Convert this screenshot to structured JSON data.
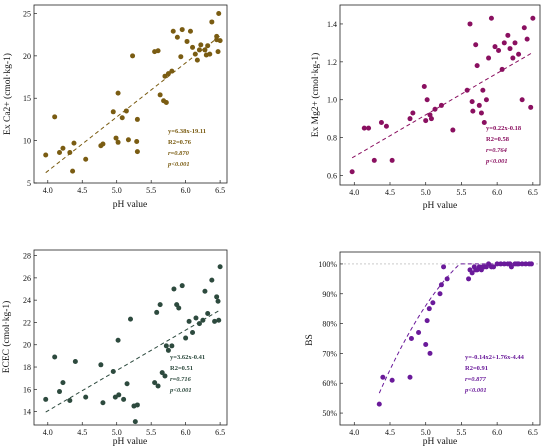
{
  "chart_data": [
    {
      "id": "ca",
      "type": "scatter",
      "xlabel": "pH value",
      "ylabel": "Ex Ca2+ (cmol·kg-1)",
      "xlim": [
        3.8,
        6.6
      ],
      "ylim": [
        5,
        26
      ],
      "xticks": [
        4.0,
        4.5,
        5.0,
        5.5,
        6.0,
        6.5
      ],
      "yticks": [
        5,
        10,
        15,
        20,
        25
      ],
      "xtick_labels": [
        "4.0",
        "4.5",
        "5.0",
        "5.5",
        "6.0",
        "6.5"
      ],
      "ytick_labels": [
        "5",
        "10",
        "15",
        "20",
        "25"
      ],
      "color": "#7a5c12",
      "fit": {
        "kind": "linear",
        "a": 6.38,
        "b": -19.11
      },
      "equation": [
        "y=6.38x-19.11",
        "R2=0.76",
        "r=0.870",
        "p<0.001"
      ],
      "points": [
        [
          3.97,
          8.3
        ],
        [
          4.1,
          12.8
        ],
        [
          4.17,
          8.6
        ],
        [
          4.22,
          9.1
        ],
        [
          4.32,
          8.6
        ],
        [
          4.36,
          6.4
        ],
        [
          4.38,
          9.7
        ],
        [
          4.55,
          7.8
        ],
        [
          4.77,
          9.4
        ],
        [
          4.8,
          9.6
        ],
        [
          4.95,
          13.4
        ],
        [
          4.99,
          10.3
        ],
        [
          5.02,
          15.6
        ],
        [
          5.02,
          9.8
        ],
        [
          5.08,
          12.7
        ],
        [
          5.14,
          13.5
        ],
        [
          5.17,
          10.1
        ],
        [
          5.23,
          20.0
        ],
        [
          5.29,
          9.9
        ],
        [
          5.3,
          8.7
        ],
        [
          5.3,
          12.5
        ],
        [
          5.55,
          20.5
        ],
        [
          5.6,
          20.6
        ],
        [
          5.63,
          15.4
        ],
        [
          5.68,
          14.7
        ],
        [
          5.7,
          17.6
        ],
        [
          5.72,
          14.5
        ],
        [
          5.75,
          17.9
        ],
        [
          5.8,
          18.2
        ],
        [
          5.82,
          22.9
        ],
        [
          5.88,
          22.2
        ],
        [
          5.93,
          19.9
        ],
        [
          5.95,
          23.1
        ],
        [
          6.02,
          21.7
        ],
        [
          6.07,
          22.9
        ],
        [
          6.14,
          20.2
        ],
        [
          6.17,
          19.5
        ],
        [
          6.2,
          20.7
        ],
        [
          6.22,
          21.3
        ],
        [
          6.28,
          20.7
        ],
        [
          6.32,
          21.2
        ],
        [
          6.35,
          20.2
        ],
        [
          6.38,
          24.0
        ],
        [
          6.45,
          22.3
        ],
        [
          6.47,
          20.5
        ],
        [
          6.48,
          25.0
        ],
        [
          6.5,
          21.8
        ],
        [
          6.45,
          21.9
        ],
        [
          6.1,
          21.0
        ],
        [
          6.3,
          20.1
        ]
      ]
    },
    {
      "id": "mg",
      "type": "scatter",
      "xlabel": "pH value",
      "ylabel": "Ex Mg2+ (cmol·kg-1)",
      "xlim": [
        3.8,
        6.6
      ],
      "ylim": [
        0.55,
        1.5
      ],
      "xticks": [
        4.0,
        4.5,
        5.0,
        5.5,
        6.0,
        6.5
      ],
      "yticks": [
        0.6,
        0.8,
        1.0,
        1.2,
        1.4
      ],
      "xtick_labels": [
        "4.0",
        "4.5",
        "5.0",
        "5.5",
        "6.0",
        "6.5"
      ],
      "ytick_labels": [
        "0.6",
        "0.8",
        "1.0",
        "1.2",
        "1.4"
      ],
      "color": "#8a1060",
      "fit": {
        "kind": "linear",
        "a": 0.22,
        "b": -0.18
      },
      "equation": [
        "y=0.22x-0.18",
        "R2=0.58",
        "r=0.764",
        "p<0.001"
      ],
      "points": [
        [
          3.97,
          0.62
        ],
        [
          4.14,
          0.85
        ],
        [
          4.2,
          0.85
        ],
        [
          4.28,
          0.68
        ],
        [
          4.38,
          0.88
        ],
        [
          4.45,
          0.86
        ],
        [
          4.53,
          0.68
        ],
        [
          4.78,
          0.9
        ],
        [
          4.82,
          0.93
        ],
        [
          4.98,
          1.07
        ],
        [
          5.0,
          0.89
        ],
        [
          5.02,
          1.0
        ],
        [
          5.06,
          0.92
        ],
        [
          5.08,
          0.9
        ],
        [
          5.13,
          0.95
        ],
        [
          5.22,
          0.97
        ],
        [
          5.38,
          0.84
        ],
        [
          5.58,
          1.05
        ],
        [
          5.62,
          1.4
        ],
        [
          5.65,
          0.99
        ],
        [
          5.66,
          0.94
        ],
        [
          5.7,
          1.29
        ],
        [
          5.72,
          1.18
        ],
        [
          5.75,
          0.97
        ],
        [
          5.78,
          0.93
        ],
        [
          5.8,
          1.05
        ],
        [
          5.82,
          0.88
        ],
        [
          5.85,
          1.0
        ],
        [
          5.88,
          1.22
        ],
        [
          5.92,
          1.43
        ],
        [
          5.97,
          1.28
        ],
        [
          6.02,
          1.26
        ],
        [
          6.07,
          1.16
        ],
        [
          6.1,
          1.3
        ],
        [
          6.15,
          1.34
        ],
        [
          6.18,
          1.27
        ],
        [
          6.22,
          1.22
        ],
        [
          6.25,
          1.3
        ],
        [
          6.3,
          1.24
        ],
        [
          6.35,
          1.0
        ],
        [
          6.38,
          1.38
        ],
        [
          6.42,
          1.32
        ],
        [
          6.47,
          0.96
        ],
        [
          6.5,
          1.43
        ]
      ]
    },
    {
      "id": "ecec",
      "type": "scatter",
      "xlabel": "pH value",
      "ylabel": "ECEC (cmol·kg-1)",
      "xlim": [
        3.8,
        6.6
      ],
      "ylim": [
        12.8,
        28.5
      ],
      "xticks": [
        4.0,
        4.5,
        5.0,
        5.5,
        6.0,
        6.5
      ],
      "yticks": [
        14,
        16,
        18,
        20,
        22,
        24,
        26,
        28
      ],
      "xtick_labels": [
        "4.0",
        "4.5",
        "5.0",
        "5.5",
        "6.0",
        "6.5"
      ],
      "ytick_labels": [
        "14",
        "16",
        "18",
        "20",
        "22",
        "24",
        "26",
        "28"
      ],
      "color": "#2d4a3e",
      "fit": {
        "kind": "linear",
        "a": 3.62,
        "b": -0.41
      },
      "equation": [
        "y=3.62x-0.41",
        "R2=0.51",
        "r=0.716",
        "p<0.001"
      ],
      "points": [
        [
          3.97,
          15.1
        ],
        [
          4.1,
          18.9
        ],
        [
          4.17,
          15.8
        ],
        [
          4.22,
          16.6
        ],
        [
          4.32,
          15.0
        ],
        [
          4.4,
          18.5
        ],
        [
          4.55,
          15.3
        ],
        [
          4.77,
          18.2
        ],
        [
          4.8,
          14.8
        ],
        [
          4.95,
          17.6
        ],
        [
          4.98,
          15.3
        ],
        [
          5.02,
          20.4
        ],
        [
          5.03,
          15.5
        ],
        [
          5.1,
          15.1
        ],
        [
          5.15,
          16.5
        ],
        [
          5.2,
          22.3
        ],
        [
          5.25,
          14.5
        ],
        [
          5.27,
          13.1
        ],
        [
          5.3,
          14.6
        ],
        [
          5.55,
          16.6
        ],
        [
          5.58,
          22.9
        ],
        [
          5.6,
          16.3
        ],
        [
          5.63,
          23.6
        ],
        [
          5.66,
          17.5
        ],
        [
          5.7,
          17.2
        ],
        [
          5.72,
          19.9
        ],
        [
          5.75,
          19.5
        ],
        [
          5.8,
          19.9
        ],
        [
          5.83,
          25.0
        ],
        [
          5.87,
          23.6
        ],
        [
          5.9,
          23.3
        ],
        [
          5.95,
          25.3
        ],
        [
          6.0,
          20.6
        ],
        [
          6.05,
          22.1
        ],
        [
          6.1,
          21.1
        ],
        [
          6.15,
          22.4
        ],
        [
          6.2,
          21.9
        ],
        [
          6.25,
          22.2
        ],
        [
          6.28,
          24.8
        ],
        [
          6.32,
          22.8
        ],
        [
          6.38,
          25.8
        ],
        [
          6.42,
          22.1
        ],
        [
          6.45,
          24.3
        ],
        [
          6.47,
          23.9
        ],
        [
          6.5,
          27.0
        ],
        [
          6.48,
          22.2
        ]
      ]
    },
    {
      "id": "bs",
      "type": "scatter",
      "xlabel": "pH value",
      "ylabel": "BS",
      "xlim": [
        3.8,
        6.6
      ],
      "ylim": [
        46,
        104
      ],
      "xticks": [
        4.0,
        4.5,
        5.0,
        5.5,
        6.0,
        6.5
      ],
      "yticks": [
        50,
        60,
        70,
        80,
        90,
        100
      ],
      "xtick_labels": [
        "4.0",
        "4.5",
        "5.0",
        "5.5",
        "6.0",
        "6.5"
      ],
      "ytick_labels": [
        "50%",
        "60%",
        "70%",
        "80%",
        "90%",
        "100%"
      ],
      "color": "#6a1a9a",
      "fit": {
        "kind": "quadratic_capped",
        "a": -0.14,
        "b": 1.76,
        "c": -4.44,
        "cap": 100,
        "start": 4.35,
        "scale": 100
      },
      "reference_line": 100,
      "equation": [
        "y=-0.14x2+1.76x-4.44",
        "R2=0.91",
        "r=0.877",
        "p<0.001"
      ],
      "points": [
        [
          4.35,
          53
        ],
        [
          4.4,
          62
        ],
        [
          4.53,
          61
        ],
        [
          4.78,
          62
        ],
        [
          4.8,
          75
        ],
        [
          4.9,
          77
        ],
        [
          5.0,
          73
        ],
        [
          5.02,
          81
        ],
        [
          5.05,
          85
        ],
        [
          5.06,
          70
        ],
        [
          5.1,
          87
        ],
        [
          5.2,
          90
        ],
        [
          5.22,
          93
        ],
        [
          5.25,
          99
        ],
        [
          5.3,
          95
        ],
        [
          5.6,
          95
        ],
        [
          5.62,
          98
        ],
        [
          5.65,
          97
        ],
        [
          5.68,
          99
        ],
        [
          5.7,
          98
        ],
        [
          5.72,
          98
        ],
        [
          5.75,
          99
        ],
        [
          5.78,
          98
        ],
        [
          5.8,
          99
        ],
        [
          5.82,
          99
        ],
        [
          5.85,
          99
        ],
        [
          5.88,
          100
        ],
        [
          5.92,
          99
        ],
        [
          5.95,
          99
        ],
        [
          6.0,
          100
        ],
        [
          6.05,
          100
        ],
        [
          6.1,
          100
        ],
        [
          6.15,
          100
        ],
        [
          6.18,
          100
        ],
        [
          6.2,
          99
        ],
        [
          6.25,
          100
        ],
        [
          6.28,
          100
        ],
        [
          6.3,
          100
        ],
        [
          6.35,
          100
        ],
        [
          6.4,
          100
        ],
        [
          6.45,
          100
        ],
        [
          6.48,
          100
        ]
      ]
    }
  ]
}
